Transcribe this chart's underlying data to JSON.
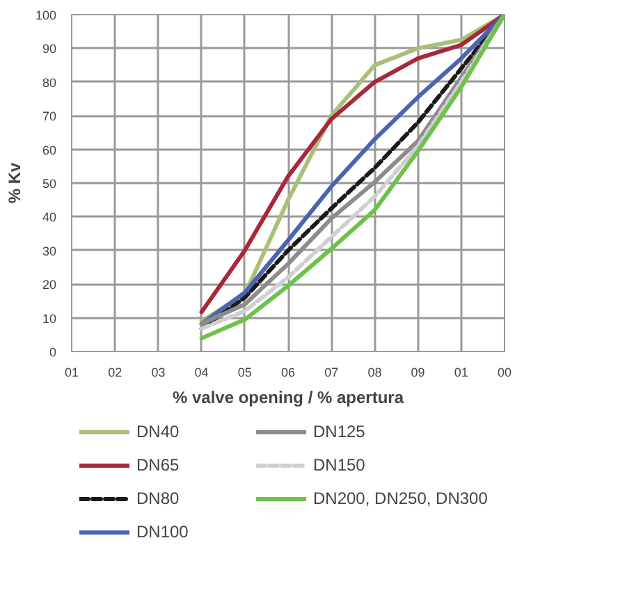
{
  "chart_data": {
    "type": "line",
    "xlabel": "% valve opening / % apertura",
    "ylabel": "% Kv",
    "categories": [
      "01",
      "02",
      "03",
      "04",
      "05",
      "06",
      "07",
      "08",
      "09",
      "01",
      "00"
    ],
    "ylim": [
      0,
      100
    ],
    "yticks": [
      0,
      10,
      20,
      30,
      40,
      50,
      60,
      70,
      80,
      90,
      100
    ],
    "grid": true,
    "legend": "bottom",
    "series": [
      {
        "name": "DN40",
        "color": "#a9c07a",
        "line_style": "solid",
        "values": [
          null,
          null,
          null,
          9,
          17,
          45,
          70,
          85,
          90,
          92.5,
          100
        ]
      },
      {
        "name": "DN65",
        "color": "#a8283a",
        "line_style": "solid",
        "values": [
          null,
          null,
          null,
          11.7,
          30,
          52,
          69,
          80,
          87,
          91,
          100
        ]
      },
      {
        "name": "DN80",
        "color": "#1a1a1a",
        "line_style": "dashed",
        "values": [
          null,
          null,
          null,
          6.8,
          16,
          30,
          42.5,
          54.5,
          68,
          84,
          100
        ]
      },
      {
        "name": "DN100",
        "color": "#4a64b0",
        "line_style": "solid",
        "values": [
          null,
          null,
          null,
          8.2,
          17.5,
          33,
          49,
          63,
          75.5,
          87,
          100
        ]
      },
      {
        "name": "DN125",
        "color": "#8c8c8c",
        "line_style": "solid",
        "values": [
          null,
          null,
          null,
          8.2,
          14,
          26,
          39.5,
          50.3,
          62.5,
          81.3,
          100
        ]
      },
      {
        "name": "DN150",
        "color": "#cfcfcf",
        "line_style": "dashed",
        "values": [
          null,
          null,
          null,
          6.8,
          12,
          22,
          34,
          46,
          61,
          80,
          100
        ]
      },
      {
        "name": "DN200, DN250, DN300",
        "color": "#6cc24a",
        "line_style": "solid",
        "values": [
          null,
          null,
          null,
          3.9,
          9.5,
          19.5,
          30.5,
          42,
          59.5,
          78.5,
          100
        ]
      }
    ]
  }
}
